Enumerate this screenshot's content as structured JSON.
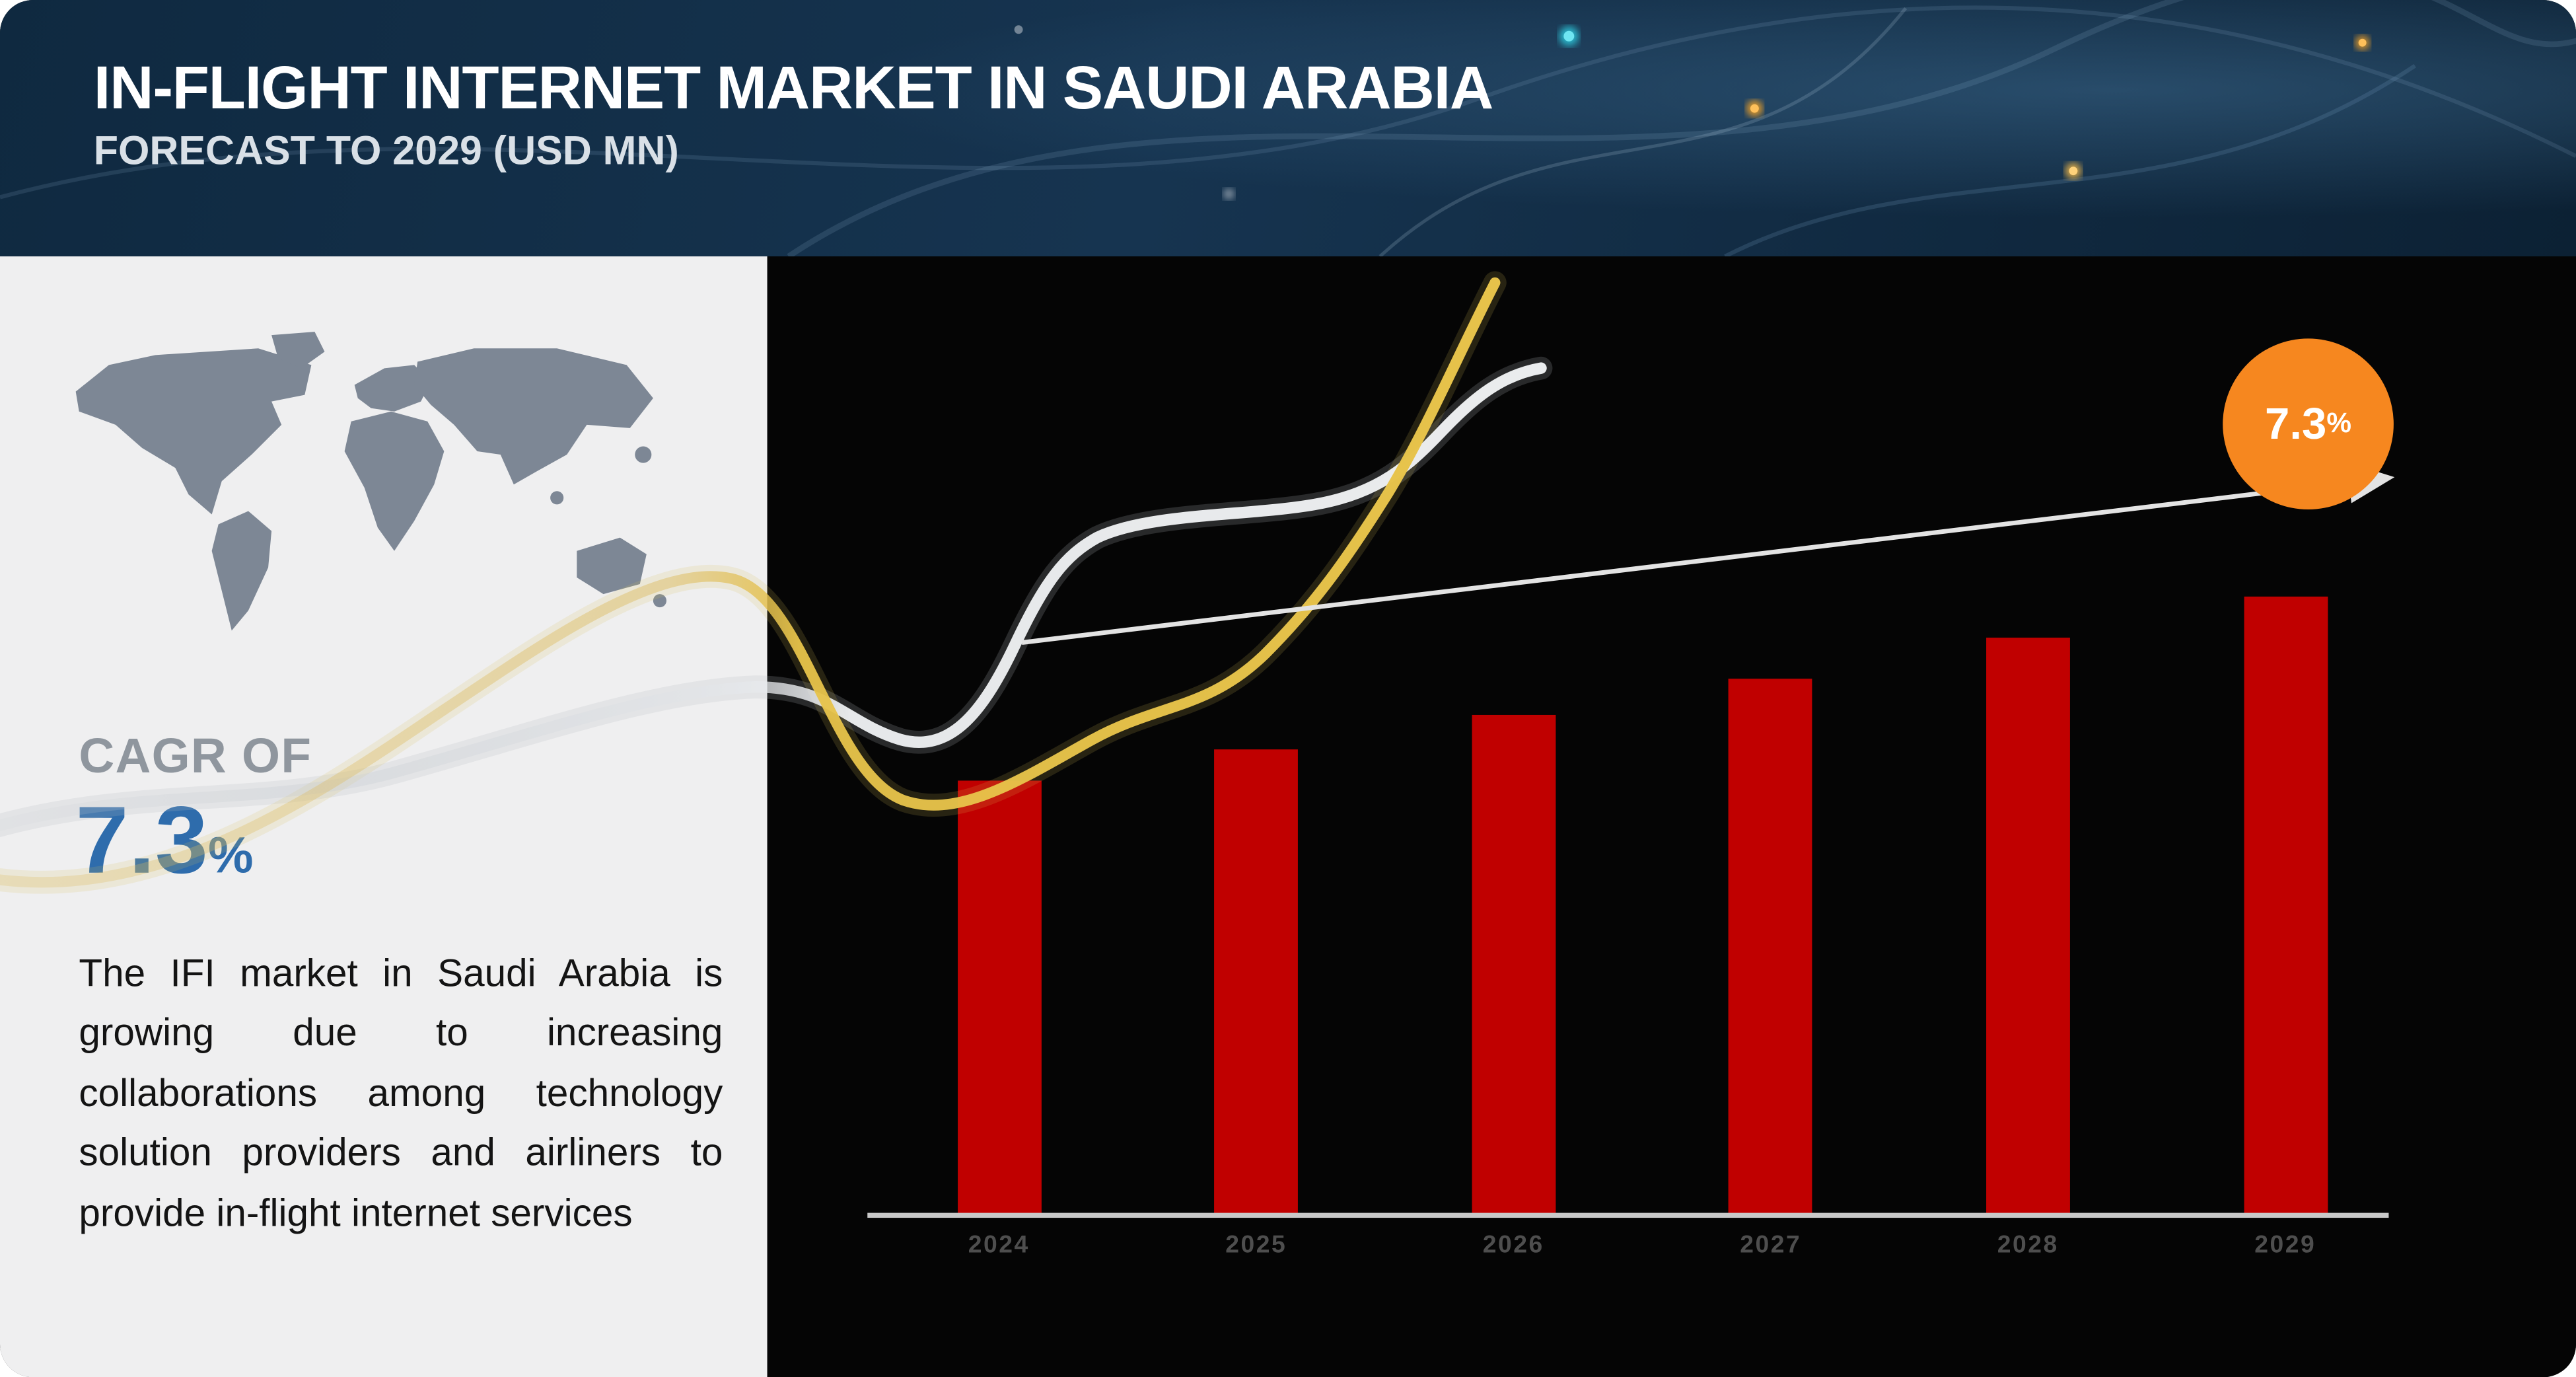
{
  "header": {
    "title": "IN-FLIGHT INTERNET MARKET IN SAUDI ARABIA",
    "subtitle": "FORECAST TO 2029 (USD MN)"
  },
  "left_panel": {
    "cagr_label": "CAGR OF",
    "cagr_value": "7.3",
    "cagr_percent_sign": "%",
    "description": "The IFI market in Saudi Arabia is growing due to increasing collaborations among technology solution providers and airliners to provide in-flight internet services"
  },
  "badge": {
    "value": "7.3",
    "percent_sign": "%"
  },
  "colors": {
    "bar_red": "#c00000",
    "badge_orange": "#f6871f",
    "cagr_blue": "#2e6cac",
    "header_navy": "#14314b",
    "panel_gray": "#efeff0",
    "chart_black": "#050505",
    "gold_curve": "#e7c34a"
  },
  "chart_data": {
    "type": "bar",
    "title": "In-Flight Internet Market in Saudi Arabia, Forecast to 2029 (USD MN)",
    "categories": [
      "2024",
      "2025",
      "2026",
      "2027",
      "2028",
      "2029"
    ],
    "values": [
      100,
      107.3,
      115.1,
      123.5,
      132.6,
      142.2
    ],
    "values_note": "bars carry no numeric labels; values are relative estimates (2024 = 100) read from bar heights, consistent with the 7.3% CAGR annotation",
    "xlabel": "",
    "ylabel": "",
    "ylim": [
      0,
      150
    ],
    "grid": false,
    "legend": "none",
    "bar_color": "#c00000",
    "background": "#000000",
    "tick_color": "#4e4e4e",
    "trendline": {
      "style": "straight arrow over bars",
      "color": "#e3e3e3",
      "annotation": "7.3%"
    },
    "annotations": [
      {
        "text": "7.3%",
        "shape": "circle-badge",
        "color": "#f6871f",
        "position": "top-right"
      }
    ]
  }
}
